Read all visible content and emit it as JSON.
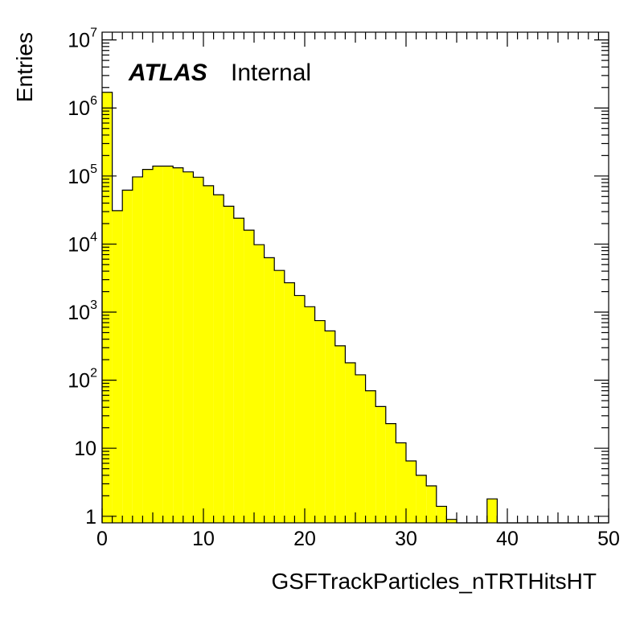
{
  "chart_data": {
    "type": "bar",
    "subtype": "histogram",
    "xlabel": "GSFTrackParticles_nTRTHitsHT",
    "ylabel": "Entries",
    "experiment_label": "ATLAS",
    "status_label": "Internal",
    "fill_color": "#ffff00",
    "line_color": "#000000",
    "y_scale": "log",
    "xlim": [
      0,
      50
    ],
    "ylim": [
      0.8,
      13000000
    ],
    "x_ticks": [
      0,
      10,
      20,
      30,
      40,
      50
    ],
    "x_tick_labels": [
      "0",
      "10",
      "20",
      "30",
      "40",
      "50"
    ],
    "y_ticks": [
      1,
      10,
      100,
      1000,
      10000,
      100000,
      1000000,
      10000000
    ],
    "y_tick_labels": [
      {
        "base": "1",
        "exp": ""
      },
      {
        "base": "10",
        "exp": ""
      },
      {
        "base": "10",
        "exp": "2"
      },
      {
        "base": "10",
        "exp": "3"
      },
      {
        "base": "10",
        "exp": "4"
      },
      {
        "base": "10",
        "exp": "5"
      },
      {
        "base": "10",
        "exp": "6"
      },
      {
        "base": "10",
        "exp": "7"
      }
    ],
    "bin_edges": [
      0,
      1,
      2,
      3,
      4,
      5,
      6,
      7,
      8,
      9,
      10,
      11,
      12,
      13,
      14,
      15,
      16,
      17,
      18,
      19,
      20,
      21,
      22,
      23,
      24,
      25,
      26,
      27,
      28,
      29,
      30,
      31,
      32,
      33,
      34,
      35,
      36,
      37,
      38,
      39,
      40,
      41,
      42,
      43,
      44,
      45,
      46,
      47,
      48,
      49,
      50
    ],
    "values": [
      1700000,
      31000,
      62000,
      97000,
      125000,
      140000,
      140000,
      132000,
      115000,
      96000,
      72000,
      53000,
      36000,
      24000,
      16000,
      9800,
      6300,
      4100,
      2700,
      1750,
      1200,
      750,
      530,
      320,
      180,
      120,
      70,
      41,
      23,
      12,
      6.5,
      4,
      2.8,
      1.4,
      0.9,
      0,
      0,
      0,
      1.8,
      0,
      0,
      0,
      0,
      0,
      0,
      0,
      0,
      0,
      0,
      0
    ],
    "grid": false,
    "legend": false
  }
}
